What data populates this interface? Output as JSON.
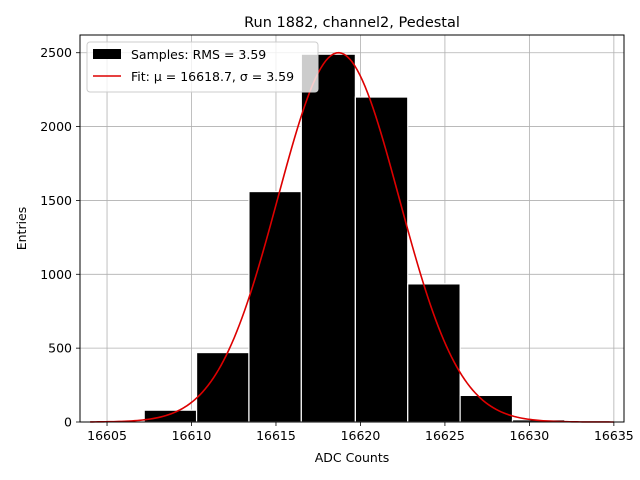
{
  "chart_data": {
    "type": "bar",
    "title": "Run 1882, channel2, Pedestal",
    "xlabel": "ADC Counts",
    "ylabel": "Entries",
    "xlim": [
      16603.4,
      16635.6
    ],
    "ylim": [
      0,
      2620
    ],
    "xticks": [
      16605,
      16610,
      16615,
      16620,
      16625,
      16630,
      16635
    ],
    "yticks": [
      0,
      500,
      1000,
      1500,
      2000,
      2500
    ],
    "grid": true,
    "legend_position": "top-left",
    "histogram": {
      "name": "Samples: RMS = 3.59",
      "color": "#000000",
      "edgecolor": "#ffffff",
      "bins": [
        {
          "x0": 16604.0,
          "x1": 16607.2,
          "value": 0
        },
        {
          "x0": 16607.2,
          "x1": 16610.3,
          "value": 80
        },
        {
          "x0": 16610.3,
          "x1": 16613.4,
          "value": 470
        },
        {
          "x0": 16613.4,
          "x1": 16616.5,
          "value": 1560
        },
        {
          "x0": 16616.5,
          "x1": 16619.7,
          "value": 2490
        },
        {
          "x0": 16619.7,
          "x1": 16622.8,
          "value": 2200
        },
        {
          "x0": 16622.8,
          "x1": 16625.9,
          "value": 935
        },
        {
          "x0": 16625.9,
          "x1": 16629.0,
          "value": 180
        },
        {
          "x0": 16629.0,
          "x1": 16632.1,
          "value": 15
        },
        {
          "x0": 16632.1,
          "x1": 16635.0,
          "value": 0
        }
      ]
    },
    "fit": {
      "name": "Fit: μ = 16618.7, σ = 3.59",
      "color": "#dd0000",
      "mu": 16618.7,
      "sigma": 3.59,
      "amplitude": 2500,
      "x_range": [
        16604,
        16635
      ]
    }
  }
}
